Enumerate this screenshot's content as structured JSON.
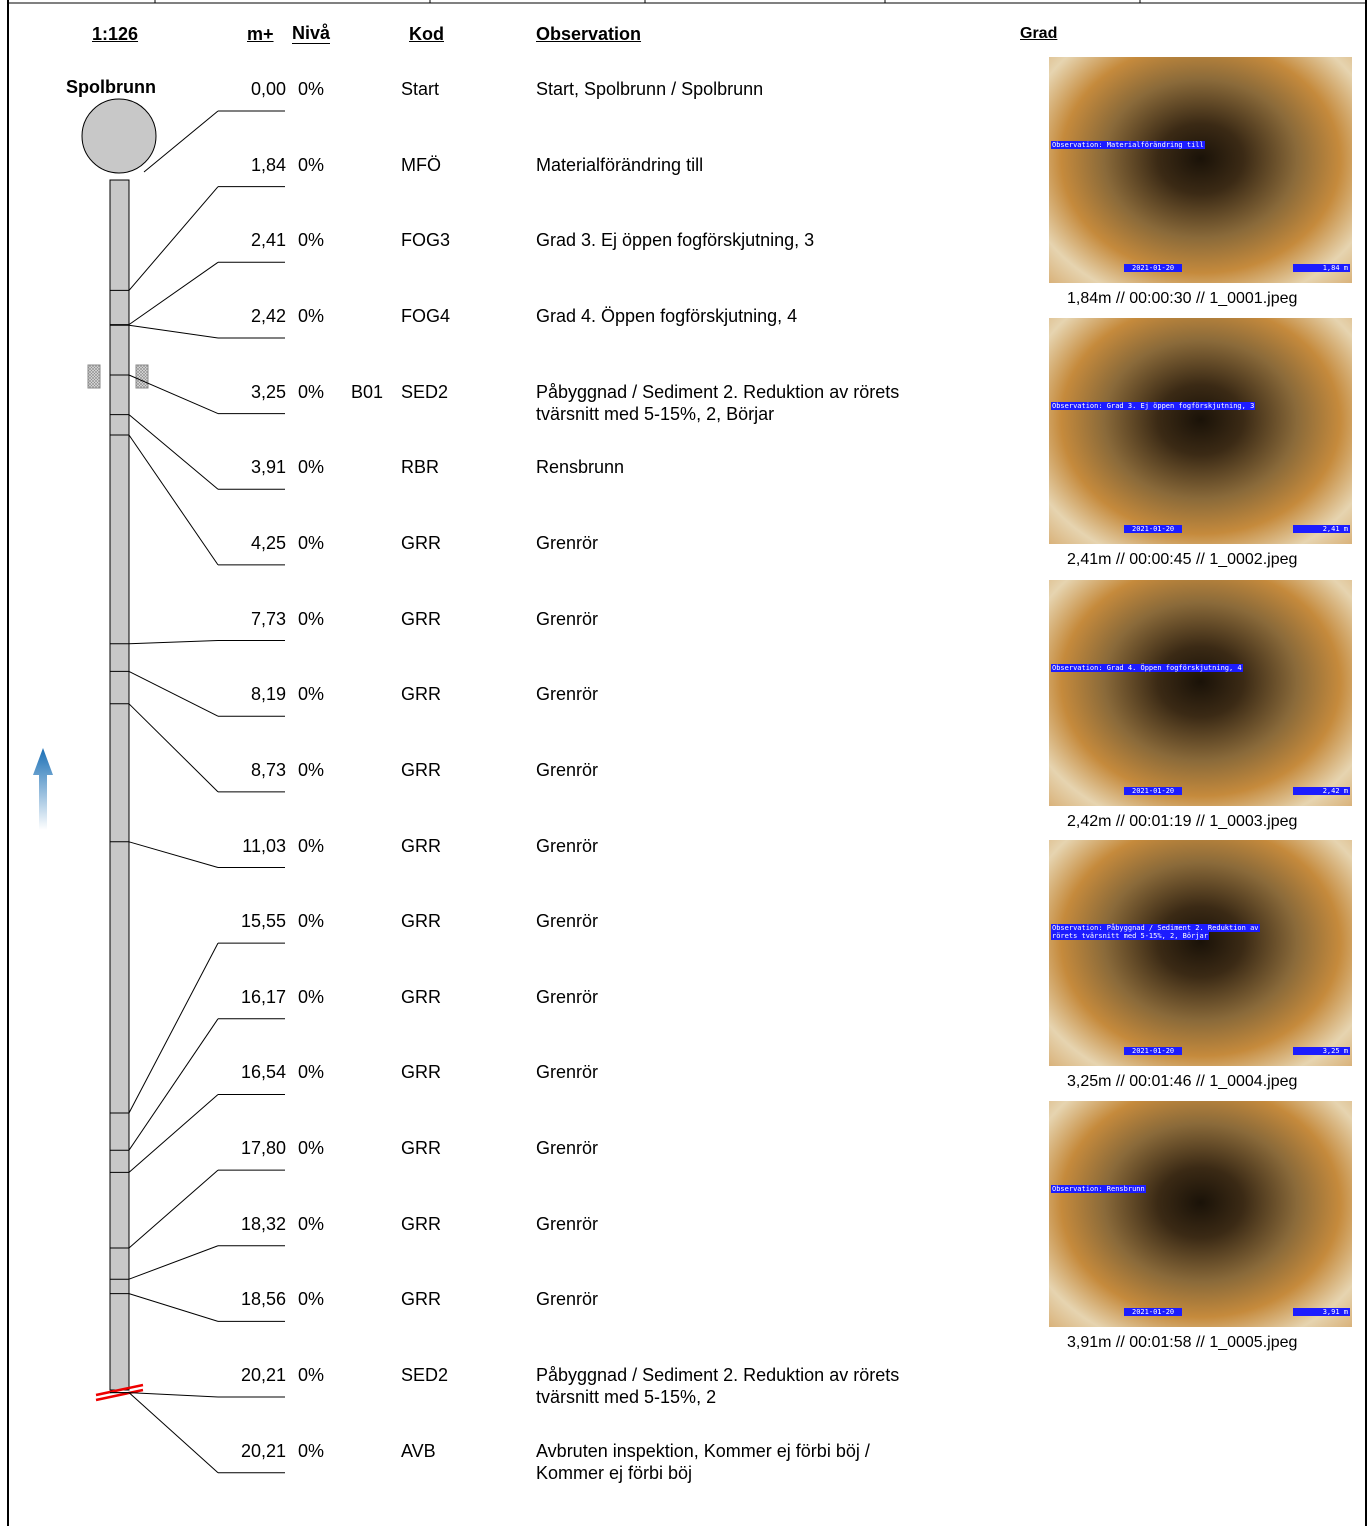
{
  "header": {
    "scale": "1:126",
    "distance": "m+",
    "level": "Nivå",
    "code": "Kod",
    "observation": "Observation",
    "grade": "Grad"
  },
  "manhole": "Spolbrunn",
  "rows": [
    {
      "distance": "0,00",
      "level": "0%",
      "code": "Start",
      "observation": [
        "Start, Spolbrunn / Spolbrunn"
      ]
    },
    {
      "distance": "1,84",
      "level": "0%",
      "code": "MFÖ",
      "observation": [
        "Materialförändring till"
      ]
    },
    {
      "distance": "2,41",
      "level": "0%",
      "code": "FOG3",
      "observation": [
        "Grad 3. Ej öppen fogförskjutning, 3"
      ]
    },
    {
      "distance": "2,42",
      "level": "0%",
      "code": "FOG4",
      "observation": [
        "Grad 4. Öppen fogförskjutning, 4"
      ]
    },
    {
      "distance": "3,25",
      "level": "0%",
      "reference": "B01",
      "code": "SED2",
      "observation": [
        "Påbyggnad / Sediment 2. Reduktion av rörets",
        "tvärsnitt med 5-15%, 2, Börjar"
      ]
    },
    {
      "distance": "3,91",
      "level": "0%",
      "code": "RBR",
      "observation": [
        "Rensbrunn"
      ]
    },
    {
      "distance": "4,25",
      "level": "0%",
      "code": "GRR",
      "observation": [
        "Grenrör"
      ]
    },
    {
      "distance": "7,73",
      "level": "0%",
      "code": "GRR",
      "observation": [
        "Grenrör"
      ]
    },
    {
      "distance": "8,19",
      "level": "0%",
      "code": "GRR",
      "observation": [
        "Grenrör"
      ]
    },
    {
      "distance": "8,73",
      "level": "0%",
      "code": "GRR",
      "observation": [
        "Grenrör"
      ]
    },
    {
      "distance": "11,03",
      "level": "0%",
      "code": "GRR",
      "observation": [
        "Grenrör"
      ]
    },
    {
      "distance": "15,55",
      "level": "0%",
      "code": "GRR",
      "observation": [
        "Grenrör"
      ]
    },
    {
      "distance": "16,17",
      "level": "0%",
      "code": "GRR",
      "observation": [
        "Grenrör"
      ]
    },
    {
      "distance": "16,54",
      "level": "0%",
      "code": "GRR",
      "observation": [
        "Grenrör"
      ]
    },
    {
      "distance": "17,80",
      "level": "0%",
      "code": "GRR",
      "observation": [
        "Grenrör"
      ]
    },
    {
      "distance": "18,32",
      "level": "0%",
      "code": "GRR",
      "observation": [
        "Grenrör"
      ]
    },
    {
      "distance": "18,56",
      "level": "0%",
      "code": "GRR",
      "observation": [
        "Grenrör"
      ]
    },
    {
      "distance": "20,21",
      "level": "0%",
      "code": "SED2",
      "observation": [
        "Påbyggnad / Sediment 2. Reduktion av rörets",
        "tvärsnitt med 5-15%, 2"
      ]
    },
    {
      "distance": "20,21",
      "level": "0%",
      "code": "AVB",
      "observation": [
        "Avbruten inspektion, Kommer ej förbi böj /",
        "Kommer ej förbi böj"
      ]
    }
  ],
  "photos": [
    {
      "overlay": [
        "Observation: Materialförändring till"
      ],
      "date": "2021-01-20",
      "position": "1,84 m",
      "caption": "1,84m // 00:00:30 // 1_0001.jpeg"
    },
    {
      "overlay": [
        "Observation: Grad 3. Ej öppen fogförskjutning,  3"
      ],
      "date": "2021-01-20",
      "position": "2,41 m",
      "caption": "2,41m // 00:00:45 // 1_0002.jpeg"
    },
    {
      "overlay": [
        "Observation: Grad 4. Öppen fogförskjutning,  4"
      ],
      "date": "2021-01-20",
      "position": "2,42 m",
      "caption": "2,42m // 00:01:19 // 1_0003.jpeg"
    },
    {
      "overlay": [
        "Observation: Påbyggnad / Sediment 2. Reduktion av",
        "rörets tvärsnitt med 5-15%,  2,  Börjar"
      ],
      "date": "2021-01-20",
      "position": "3,25 m",
      "caption": "3,25m // 00:01:46 // 1_0004.jpeg"
    },
    {
      "overlay": [
        "Observation: Rensbrunn"
      ],
      "date": "2021-01-20",
      "position": "3,91 m",
      "caption": "3,91m // 00:01:58 // 1_0005.jpeg"
    }
  ]
}
